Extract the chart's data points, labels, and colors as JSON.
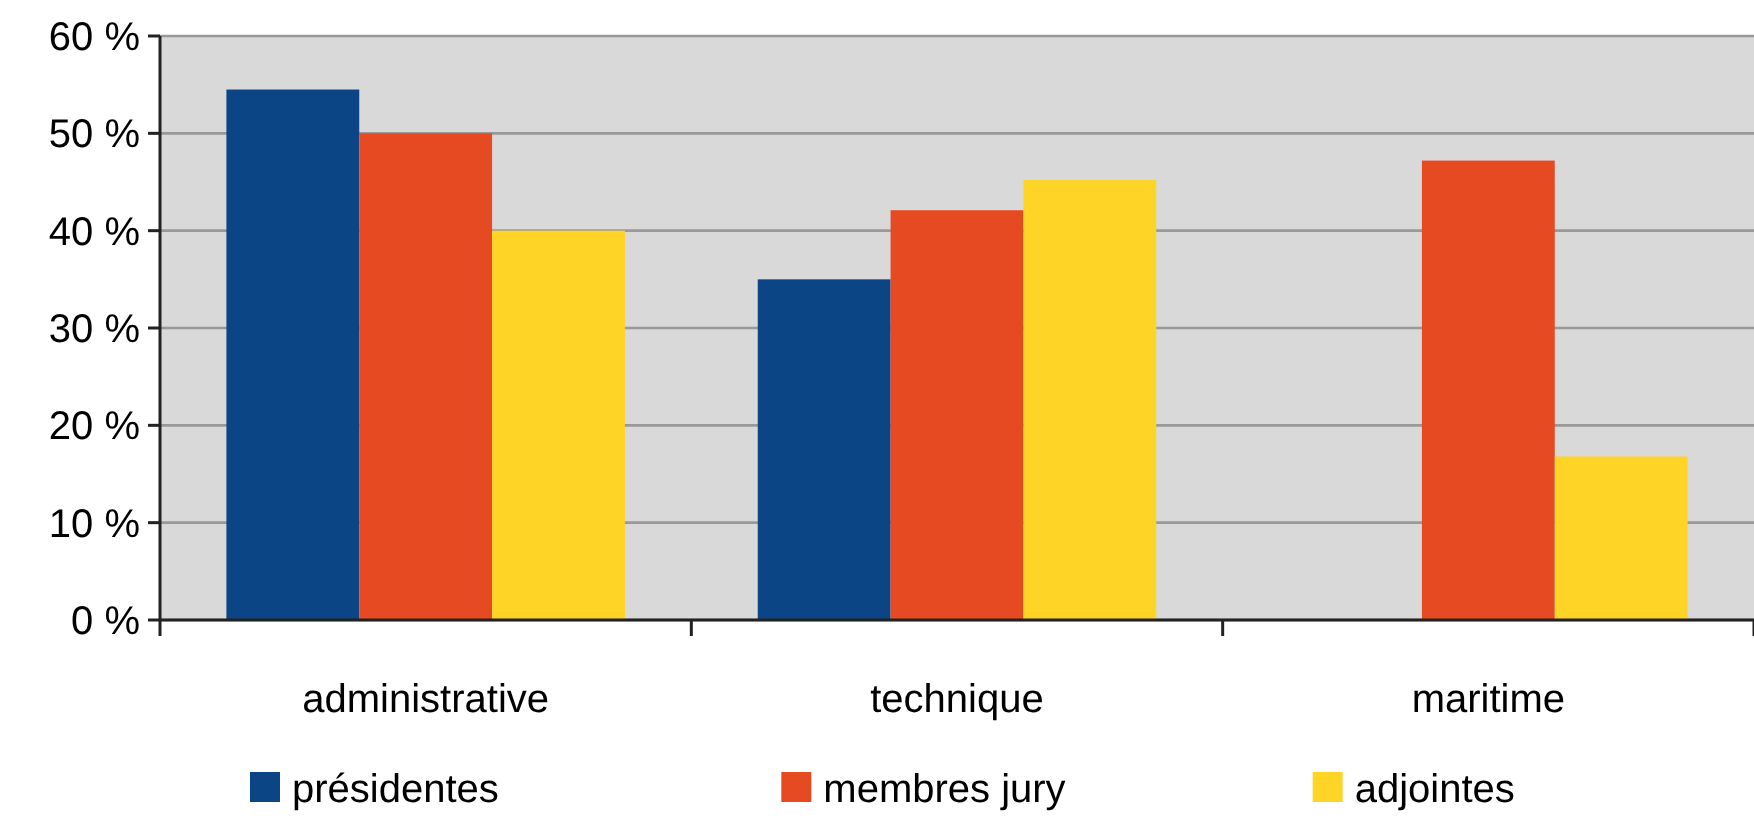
{
  "chart_data": {
    "type": "bar",
    "categories": [
      "administrative",
      "technique",
      "maritime"
    ],
    "series": [
      {
        "name": "présidentes",
        "color": "#0c4585",
        "values": [
          54.5,
          35,
          0
        ]
      },
      {
        "name": "membres jury",
        "color": "#e64a22",
        "values": [
          50,
          42.1,
          47.2
        ]
      },
      {
        "name": "adjointes",
        "color": "#fed426",
        "values": [
          40,
          45.2,
          16.8
        ]
      }
    ],
    "ylim": [
      0,
      60
    ],
    "yticks": [
      {
        "value": 0,
        "label": "0 %"
      },
      {
        "value": 10,
        "label": "10 %"
      },
      {
        "value": 20,
        "label": "20 %"
      },
      {
        "value": 30,
        "label": "30 %"
      },
      {
        "value": 40,
        "label": "40 %"
      },
      {
        "value": 50,
        "label": "50 %"
      },
      {
        "value": 60,
        "label": "60 %"
      }
    ],
    "grid": "y",
    "legend": "bottom"
  }
}
